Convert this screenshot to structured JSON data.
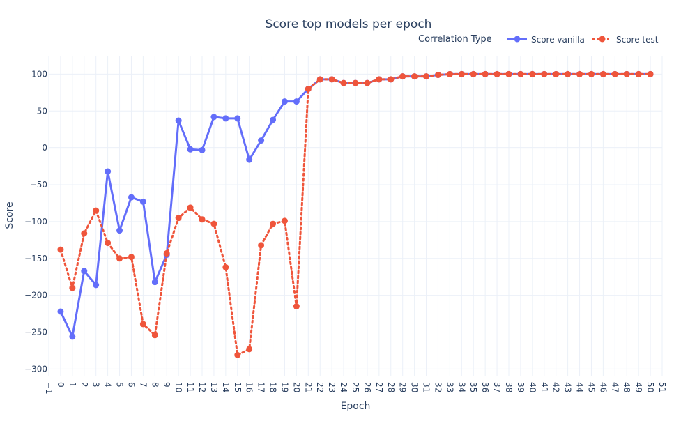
{
  "chart_data": {
    "type": "line",
    "title": "Score top models per epoch",
    "xlabel": "Epoch",
    "ylabel": "Score",
    "xlim": [
      -1,
      51
    ],
    "ylim": [
      -310,
      125
    ],
    "x_ticks": [
      -1,
      0,
      1,
      2,
      3,
      4,
      5,
      6,
      7,
      8,
      9,
      10,
      11,
      12,
      13,
      14,
      15,
      16,
      17,
      18,
      19,
      20,
      21,
      22,
      23,
      24,
      25,
      26,
      27,
      28,
      29,
      30,
      31,
      32,
      33,
      34,
      35,
      36,
      37,
      38,
      39,
      40,
      41,
      42,
      43,
      44,
      45,
      46,
      47,
      48,
      49,
      50,
      51
    ],
    "y_ticks": [
      100,
      50,
      0,
      -50,
      -100,
      -150,
      -200,
      -250,
      -300
    ],
    "grid": true,
    "legend": {
      "title": "Correlation Type",
      "placement": "top-right",
      "orientation": "horizontal"
    },
    "x": [
      0,
      1,
      2,
      3,
      4,
      5,
      6,
      7,
      8,
      9,
      10,
      11,
      12,
      13,
      14,
      15,
      16,
      17,
      18,
      19,
      20,
      21,
      22,
      23,
      24,
      25,
      26,
      27,
      28,
      29,
      30,
      31,
      32,
      33,
      34,
      35,
      36,
      37,
      38,
      39,
      40,
      41,
      42,
      43,
      44,
      45,
      46,
      47,
      48,
      49,
      50
    ],
    "series": [
      {
        "name": "Score vanilla",
        "color": "#636efa",
        "dash": "solid",
        "values": [
          -222,
          -256,
          -167,
          -186,
          -32,
          -112,
          -67,
          -73,
          -182,
          -145,
          37,
          -2,
          -3,
          42,
          40,
          40,
          -16,
          10,
          38,
          63,
          63,
          80,
          93,
          93,
          88,
          88,
          88,
          93,
          93,
          97,
          97,
          97,
          99,
          100,
          100,
          100,
          100,
          100,
          100,
          100,
          100,
          100,
          100,
          100,
          100,
          100,
          100,
          100,
          100,
          100,
          100
        ]
      },
      {
        "name": "Score test",
        "color": "#ef553b",
        "dash": "dot",
        "values": [
          -138,
          -190,
          -116,
          -85,
          -129,
          -150,
          -148,
          -239,
          -254,
          -143,
          -95,
          -81,
          -97,
          -103,
          -162,
          -281,
          -273,
          -132,
          -103,
          -99,
          -215,
          80,
          93,
          93,
          88,
          88,
          88,
          93,
          93,
          97,
          97,
          97,
          99,
          100,
          100,
          100,
          100,
          100,
          100,
          100,
          100,
          100,
          100,
          100,
          100,
          100,
          100,
          100,
          100,
          100,
          100
        ]
      }
    ]
  }
}
